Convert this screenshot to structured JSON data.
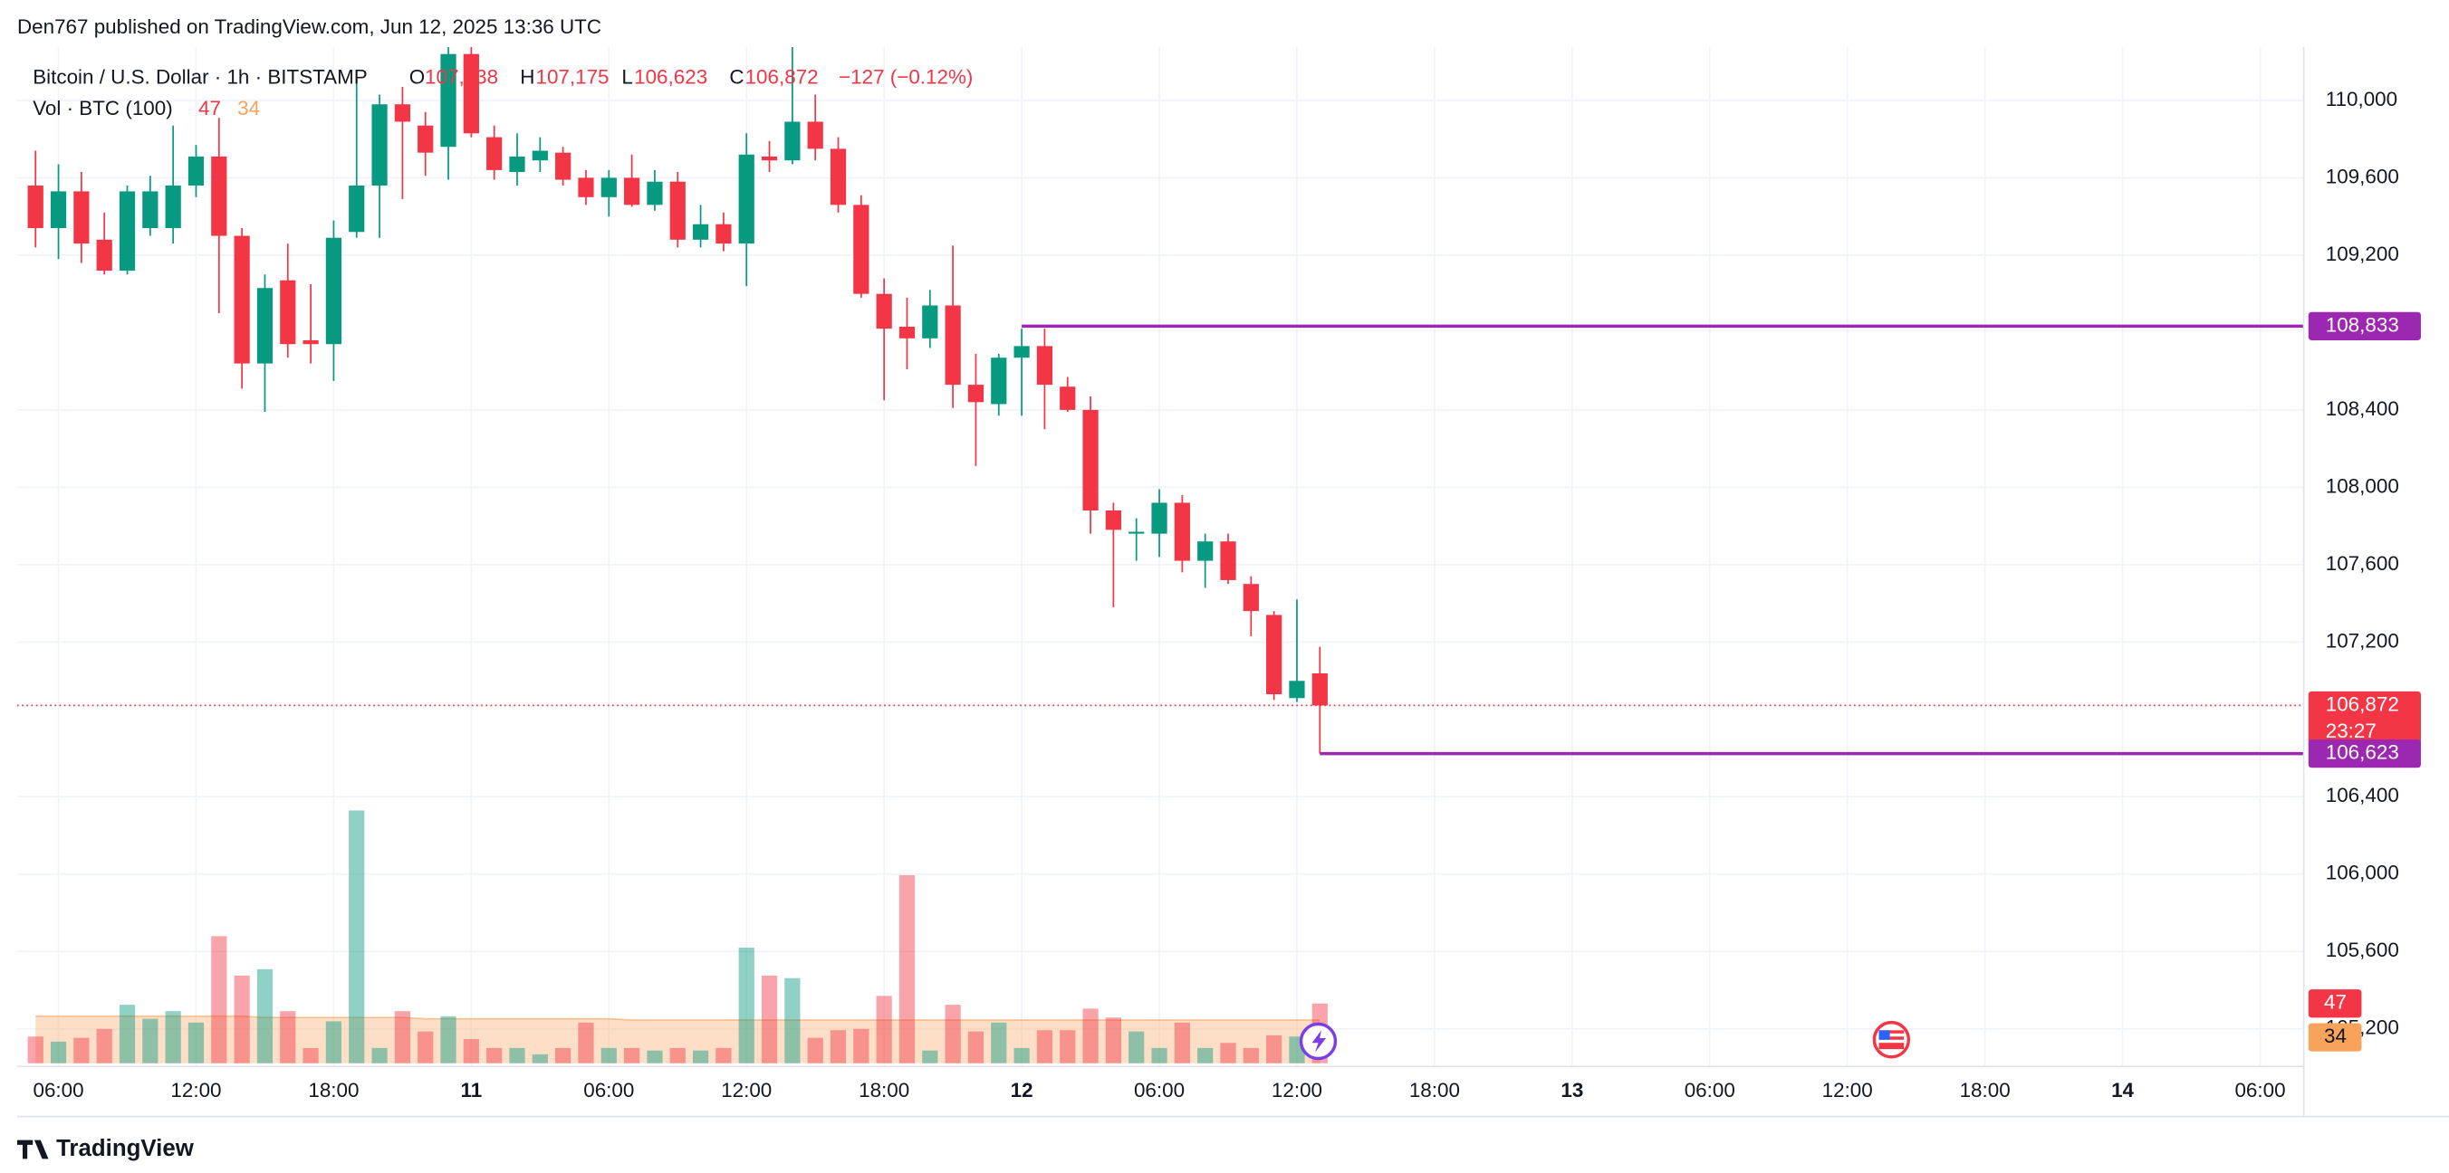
{
  "chart_data": {
    "type": "candlestick",
    "header": "Den767 published on TradingView.com, Jun 12, 2025 13:36 UTC",
    "footer": "TradingView",
    "legend": {
      "symbol": "Bitcoin / U.S. Dollar · 1h · BITSTAMP",
      "o": "O",
      "open": "107,038",
      "h": "H",
      "high": "107,175",
      "l": "L",
      "low": "106,623",
      "c": "C",
      "close": "106,872",
      "change": "−127 (−0.12%)",
      "volume_title": "Vol · BTC (100)"
    },
    "up_color": "#089981",
    "down_color": "#f23645",
    "volume_ma_color": "#f7a35c",
    "x": [
      5,
      6,
      7,
      8,
      9,
      10,
      11,
      12,
      13,
      14,
      15,
      16,
      17,
      18,
      19,
      20,
      21,
      22,
      23,
      24,
      25,
      26,
      27,
      28,
      29,
      30,
      31,
      32,
      33,
      34,
      35,
      36,
      37,
      38,
      39,
      40,
      41,
      42,
      43,
      44,
      45,
      46,
      47,
      48,
      49,
      50,
      51,
      52,
      53,
      54,
      55,
      56,
      57,
      58,
      59,
      60,
      61
    ],
    "open": [
      109560,
      109340,
      109530,
      109280,
      109120,
      109340,
      109340,
      109560,
      109710,
      109300,
      108640,
      109070,
      108760,
      108740,
      109320,
      109560,
      109980,
      109870,
      109760,
      110240,
      109810,
      109630,
      109690,
      109730,
      109600,
      109500,
      109600,
      109460,
      109580,
      109280,
      109360,
      109260,
      109710,
      109690,
      109890,
      109750,
      109460,
      109000,
      108830,
      108770,
      108940,
      108530,
      108430,
      108670,
      108730,
      108520,
      108400,
      107880,
      107760,
      107760,
      107920,
      107620,
      107720,
      107500,
      107340,
      106910,
      107038
    ],
    "high": [
      109740,
      109670,
      109630,
      109420,
      109560,
      109610,
      109870,
      109770,
      109910,
      109340,
      109100,
      109260,
      109050,
      109380,
      110110,
      110030,
      110070,
      109940,
      110280,
      110360,
      109870,
      109830,
      109810,
      109760,
      109640,
      109640,
      109720,
      109640,
      109630,
      109460,
      109420,
      109830,
      109790,
      110280,
      110030,
      109810,
      109510,
      109080,
      108980,
      109020,
      109250,
      108690,
      108690,
      108820,
      108820,
      108570,
      108470,
      107920,
      107840,
      107990,
      107960,
      107760,
      107760,
      107540,
      107360,
      107420,
      107175
    ],
    "low": [
      109240,
      109180,
      109160,
      109100,
      109100,
      109300,
      109260,
      109500,
      108900,
      108510,
      108390,
      108670,
      108640,
      108550,
      109290,
      109290,
      109490,
      109610,
      109590,
      109810,
      109590,
      109560,
      109630,
      109560,
      109460,
      109400,
      109450,
      109430,
      109240,
      109240,
      109220,
      109040,
      109630,
      109670,
      109690,
      109420,
      108980,
      108450,
      108610,
      108720,
      108410,
      108110,
      108370,
      108370,
      108300,
      108390,
      107760,
      107380,
      107620,
      107640,
      107560,
      107480,
      107500,
      107230,
      106900,
      106890,
      106623
    ],
    "close": [
      109340,
      109530,
      109260,
      109120,
      109530,
      109530,
      109560,
      109710,
      109300,
      108640,
      109030,
      108740,
      108740,
      109290,
      109560,
      109980,
      109890,
      109730,
      110240,
      109830,
      109640,
      109710,
      109740,
      109590,
      109500,
      109600,
      109460,
      109580,
      109280,
      109360,
      109260,
      109720,
      109690,
      109890,
      109750,
      109460,
      109000,
      108820,
      108770,
      108940,
      108530,
      108440,
      108670,
      108730,
      108530,
      108400,
      107880,
      107780,
      107770,
      107920,
      107620,
      107720,
      107520,
      107360,
      106930,
      106999,
      106872
    ],
    "volume": [
      21,
      17,
      20,
      27,
      46,
      35,
      41,
      32,
      100,
      69,
      74,
      41,
      12,
      33,
      199,
      12,
      41,
      25,
      37,
      19,
      12,
      12,
      7,
      12,
      32,
      12,
      12,
      10,
      12,
      10,
      12,
      91,
      69,
      67,
      20,
      26,
      27,
      53,
      148,
      10,
      46,
      25,
      32,
      12,
      26,
      26,
      43,
      36,
      25,
      12,
      32,
      12,
      16,
      12,
      22,
      21,
      47
    ],
    "volume_ma": [
      37,
      37,
      37,
      37,
      37,
      37,
      37,
      37,
      37,
      37,
      36,
      36,
      36,
      36,
      36,
      36,
      36,
      35,
      35,
      35,
      35,
      35,
      35,
      35,
      35,
      35,
      34,
      34,
      34,
      34,
      34,
      34,
      34,
      34,
      34,
      34,
      34,
      34,
      34,
      34,
      34,
      34,
      34,
      34,
      34,
      34,
      34,
      34,
      34,
      34,
      34,
      34,
      34,
      34,
      34,
      34,
      34
    ],
    "levels": [
      {
        "value": 108833,
        "label": "108,833",
        "start": 48,
        "color": "#9c27b0"
      },
      {
        "value": 106623,
        "label": "106,623",
        "start": 61,
        "color": "#9c27b0"
      }
    ],
    "last_price": {
      "value": 106872,
      "label": "106,872",
      "countdown": "23:27"
    },
    "xlim": [
      4.2,
      103.9
    ],
    "ylim": [
      105006,
      110276
    ],
    "xticks": [
      {
        "value": 6,
        "label": "06:00"
      },
      {
        "value": 12,
        "label": "12:00"
      },
      {
        "value": 18,
        "label": "18:00"
      },
      {
        "value": 24,
        "label": "11"
      },
      {
        "value": 30,
        "label": "06:00"
      },
      {
        "value": 36,
        "label": "12:00"
      },
      {
        "value": 42,
        "label": "18:00"
      },
      {
        "value": 48,
        "label": "12"
      },
      {
        "value": 54,
        "label": "06:00"
      },
      {
        "value": 60,
        "label": "12:00"
      },
      {
        "value": 66,
        "label": "18:00"
      },
      {
        "value": 72,
        "label": "13"
      },
      {
        "value": 78,
        "label": "06:00"
      },
      {
        "value": 84,
        "label": "12:00"
      },
      {
        "value": 90,
        "label": "18:00"
      },
      {
        "value": 96,
        "label": "14"
      },
      {
        "value": 102,
        "label": "06:00"
      }
    ],
    "yticks": [
      {
        "value": 110000,
        "label": "110,000"
      },
      {
        "value": 109600,
        "label": "109,600"
      },
      {
        "value": 109200,
        "label": "109,200"
      },
      {
        "value": 108400,
        "label": "108,400"
      },
      {
        "value": 108000,
        "label": "108,000"
      },
      {
        "value": 107600,
        "label": "107,600"
      },
      {
        "value": 107200,
        "label": "107,200"
      },
      {
        "value": 106400,
        "label": "106,400"
      },
      {
        "value": 106000,
        "label": "106,000"
      },
      {
        "value": 105600,
        "label": "105,600"
      },
      {
        "value": 105200,
        "label": "105,200"
      }
    ],
    "grid": true
  }
}
